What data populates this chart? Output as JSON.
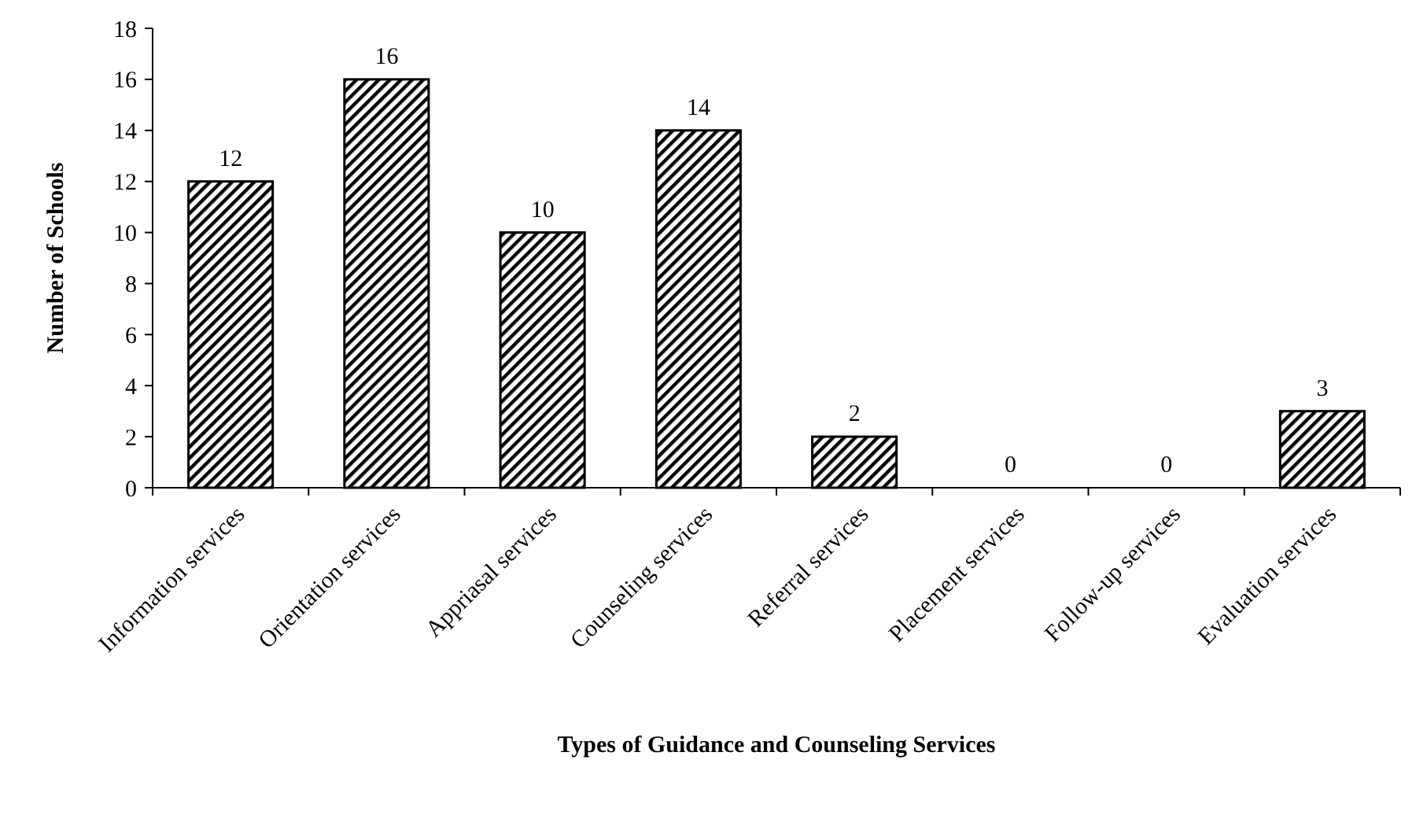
{
  "chart_data": {
    "type": "bar",
    "xlabel": "Types of Guidance and Counseling Services",
    "ylabel": "Number of Schools",
    "categories": [
      "Information services",
      "Orientation services",
      "Appriasal services",
      "Counseling services",
      "Referral services",
      "Placement services",
      "Follow-up services",
      "Evaluation services"
    ],
    "values": [
      12,
      16,
      10,
      14,
      2,
      0,
      0,
      3
    ],
    "color": "#000000",
    "ylim": [
      0,
      18
    ],
    "yticks": [
      0,
      2,
      4,
      6,
      8,
      10,
      12,
      14,
      16,
      18
    ],
    "data_labels": true,
    "grid": false
  }
}
